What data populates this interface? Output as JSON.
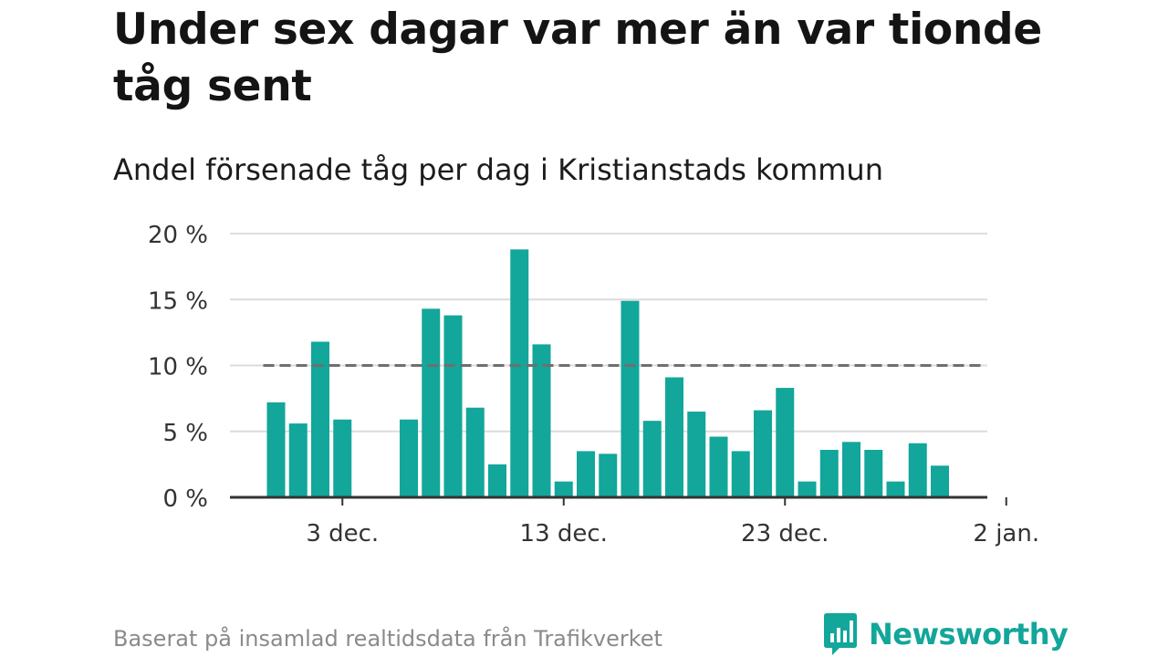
{
  "title": "Under sex dagar var mer än var tionde tåg sent",
  "subtitle": "Andel försenade tåg per dag i Kristianstads kommun",
  "source": "Baserat på insamlad realtidsdata från Trafikverket",
  "brand": {
    "name": "Newsworthy",
    "logo_icon": "bar-chart-speech-bubble-icon",
    "color": "#13a69a"
  },
  "chart_data": {
    "type": "bar",
    "bar_color": "#13a69a",
    "x": [
      "2023-11-30",
      "2023-12-01",
      "2023-12-02",
      "2023-12-03",
      "2023-12-04",
      "2023-12-05",
      "2023-12-06",
      "2023-12-07",
      "2023-12-08",
      "2023-12-09",
      "2023-12-10",
      "2023-12-11",
      "2023-12-12",
      "2023-12-13",
      "2023-12-14",
      "2023-12-15",
      "2023-12-16",
      "2023-12-17",
      "2023-12-18",
      "2023-12-19",
      "2023-12-20",
      "2023-12-21",
      "2023-12-22",
      "2023-12-23",
      "2023-12-24",
      "2023-12-25",
      "2023-12-26",
      "2023-12-27",
      "2023-12-28",
      "2023-12-29",
      "2023-12-30",
      "2023-12-31",
      "2024-01-01"
    ],
    "values": [
      7.2,
      5.6,
      11.8,
      5.9,
      null,
      null,
      5.9,
      14.3,
      13.8,
      6.8,
      2.5,
      18.8,
      11.6,
      1.2,
      3.5,
      3.3,
      14.9,
      5.8,
      9.1,
      6.5,
      4.6,
      3.5,
      6.6,
      8.3,
      1.2,
      3.6,
      4.2,
      3.6,
      1.2,
      4.1,
      2.4,
      null,
      null
    ],
    "reference_line": {
      "value": 10,
      "color": "#6f6f6f",
      "style": "dashed"
    },
    "ylim": [
      0,
      20
    ],
    "y_ticks": [
      {
        "value": 0,
        "label": "0 %"
      },
      {
        "value": 5,
        "label": "5 %"
      },
      {
        "value": 10,
        "label": "10 %"
      },
      {
        "value": 15,
        "label": "15 %"
      },
      {
        "value": 20,
        "label": "20 %"
      }
    ],
    "x_ticks": [
      {
        "date": "2023-12-03",
        "label": "3 dec."
      },
      {
        "date": "2023-12-13",
        "label": "13 dec."
      },
      {
        "date": "2023-12-23",
        "label": "23 dec."
      },
      {
        "date": "2024-01-02",
        "label": "2 jan."
      }
    ],
    "xlabel": "",
    "ylabel": "",
    "grid": true
  }
}
